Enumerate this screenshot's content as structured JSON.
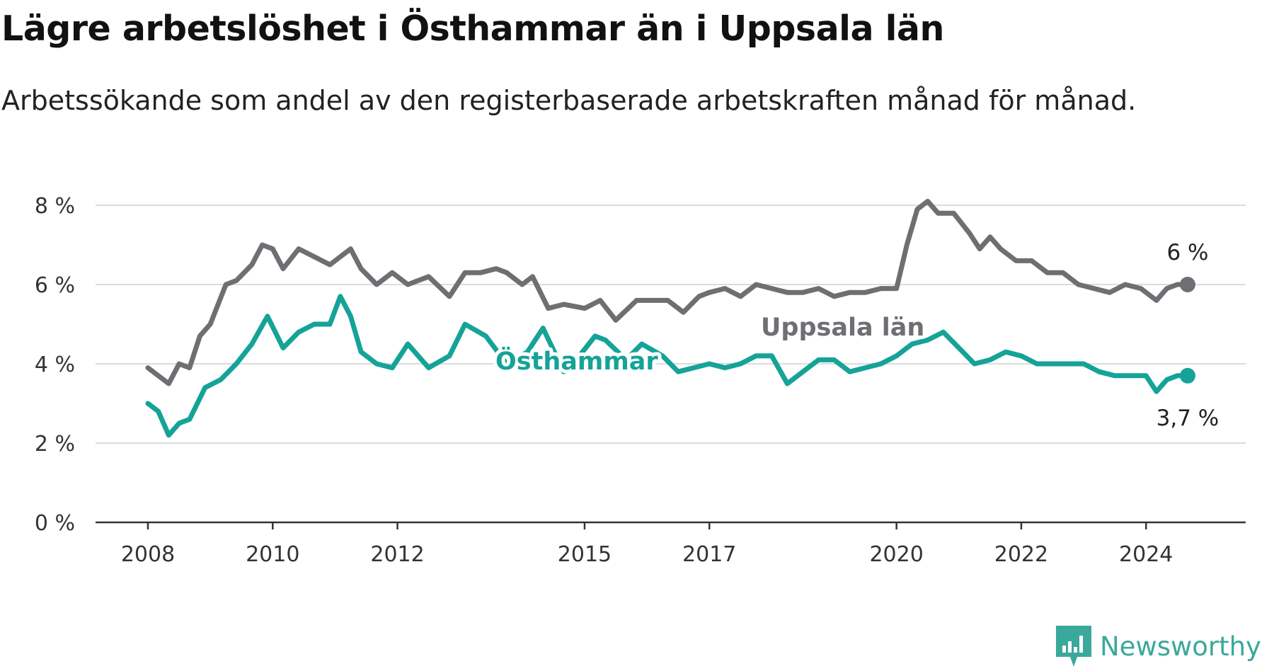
{
  "title": "Lägre arbetslöshet i Östhammar än i Uppsala län",
  "subtitle": "Arbetssökande som andel av den registerbaserade arbetskraften månad för månad.",
  "brand": {
    "name": "Newsworthy",
    "color": "#3aa89a",
    "icon": "newsworthy-bar-chart-icon"
  },
  "chart_data": {
    "type": "line",
    "title": "Lägre arbetslöshet i Östhammar än i Uppsala län",
    "subtitle": "Arbetssökande som andel av den registerbaserade arbetskraften månad för månad.",
    "xlabel": "",
    "ylabel": "",
    "x_ticks": [
      "2008",
      "2010",
      "2012",
      "2015",
      "2017",
      "2020",
      "2022",
      "2024"
    ],
    "x_range": [
      "2008-01",
      "2024-12"
    ],
    "y_ticks": [
      "0 %",
      "2 %",
      "4 %",
      "6 %",
      "8 %"
    ],
    "ylim": [
      0,
      8
    ],
    "grid": true,
    "legend": "inline labels",
    "series": [
      {
        "name": "Uppsala län",
        "color": "#6e6e73",
        "end_label": "6 %",
        "x": [
          "2008-01",
          "2008-05",
          "2008-07",
          "2008-09",
          "2008-11",
          "2009-01",
          "2009-04",
          "2009-06",
          "2009-09",
          "2009-11",
          "2010-01",
          "2010-03",
          "2010-06",
          "2010-09",
          "2010-12",
          "2011-04",
          "2011-06",
          "2011-09",
          "2011-12",
          "2012-03",
          "2012-07",
          "2012-11",
          "2013-02",
          "2013-05",
          "2013-08",
          "2013-10",
          "2014-01",
          "2014-03",
          "2014-06",
          "2014-09",
          "2015-01",
          "2015-04",
          "2015-07",
          "2015-11",
          "2016-02",
          "2016-05",
          "2016-08",
          "2016-11",
          "2017-01",
          "2017-04",
          "2017-07",
          "2017-10",
          "2018-01",
          "2018-04",
          "2018-07",
          "2018-10",
          "2019-01",
          "2019-04",
          "2019-07",
          "2019-10",
          "2020-01",
          "2020-03",
          "2020-05",
          "2020-07",
          "2020-09",
          "2020-12",
          "2021-03",
          "2021-05",
          "2021-07",
          "2021-09",
          "2021-12",
          "2022-03",
          "2022-06",
          "2022-09",
          "2022-12",
          "2023-03",
          "2023-06",
          "2023-09",
          "2023-12",
          "2024-03",
          "2024-05",
          "2024-07",
          "2024-09"
        ],
        "values": [
          3.9,
          3.5,
          4.0,
          3.9,
          4.7,
          5.0,
          6.0,
          6.1,
          6.5,
          7.0,
          6.9,
          6.4,
          6.9,
          6.7,
          6.5,
          6.9,
          6.4,
          6.0,
          6.3,
          6.0,
          6.2,
          5.7,
          6.3,
          6.3,
          6.4,
          6.3,
          6.0,
          6.2,
          5.4,
          5.5,
          5.4,
          5.6,
          5.1,
          5.6,
          5.6,
          5.6,
          5.3,
          5.7,
          5.8,
          5.9,
          5.7,
          6.0,
          5.9,
          5.8,
          5.8,
          5.9,
          5.7,
          5.8,
          5.8,
          5.9,
          5.9,
          7.0,
          7.9,
          8.1,
          7.8,
          7.8,
          7.3,
          6.9,
          7.2,
          6.9,
          6.6,
          6.6,
          6.3,
          6.3,
          6.0,
          5.9,
          5.8,
          6.0,
          5.9,
          5.6,
          5.9,
          6.0,
          6.0
        ]
      },
      {
        "name": "Östhammar",
        "color": "#15a398",
        "end_label": "3,7 %",
        "x": [
          "2008-01",
          "2008-03",
          "2008-05",
          "2008-07",
          "2008-09",
          "2008-12",
          "2009-03",
          "2009-06",
          "2009-09",
          "2009-12",
          "2010-03",
          "2010-06",
          "2010-09",
          "2010-12",
          "2011-02",
          "2011-04",
          "2011-06",
          "2011-09",
          "2011-12",
          "2012-03",
          "2012-07",
          "2012-11",
          "2013-02",
          "2013-06",
          "2013-10",
          "2014-02",
          "2014-05",
          "2014-09",
          "2014-12",
          "2015-03",
          "2015-05",
          "2015-09",
          "2015-12",
          "2016-04",
          "2016-07",
          "2016-10",
          "2017-01",
          "2017-04",
          "2017-07",
          "2017-10",
          "2018-01",
          "2018-04",
          "2018-07",
          "2018-10",
          "2019-01",
          "2019-04",
          "2019-07",
          "2019-10",
          "2020-01",
          "2020-04",
          "2020-07",
          "2020-10",
          "2021-01",
          "2021-04",
          "2021-07",
          "2021-10",
          "2022-01",
          "2022-04",
          "2022-07",
          "2022-10",
          "2023-01",
          "2023-04",
          "2023-07",
          "2023-10",
          "2024-01",
          "2024-03",
          "2024-05",
          "2024-07",
          "2024-09"
        ],
        "values": [
          3.0,
          2.8,
          2.2,
          2.5,
          2.6,
          3.4,
          3.6,
          4.0,
          4.5,
          5.2,
          4.4,
          4.8,
          5.0,
          5.0,
          5.7,
          5.2,
          4.3,
          4.0,
          3.9,
          4.5,
          3.9,
          4.2,
          5.0,
          4.7,
          4.0,
          4.3,
          4.9,
          3.8,
          4.2,
          4.7,
          4.6,
          4.1,
          4.5,
          4.2,
          3.8,
          3.9,
          4.0,
          3.9,
          4.0,
          4.2,
          4.2,
          3.5,
          3.8,
          4.1,
          4.1,
          3.8,
          3.9,
          4.0,
          4.2,
          4.5,
          4.6,
          4.8,
          4.4,
          4.0,
          4.1,
          4.3,
          4.2,
          4.0,
          4.0,
          4.0,
          4.0,
          3.8,
          3.7,
          3.7,
          3.7,
          3.3,
          3.6,
          3.7,
          3.7
        ]
      }
    ]
  }
}
